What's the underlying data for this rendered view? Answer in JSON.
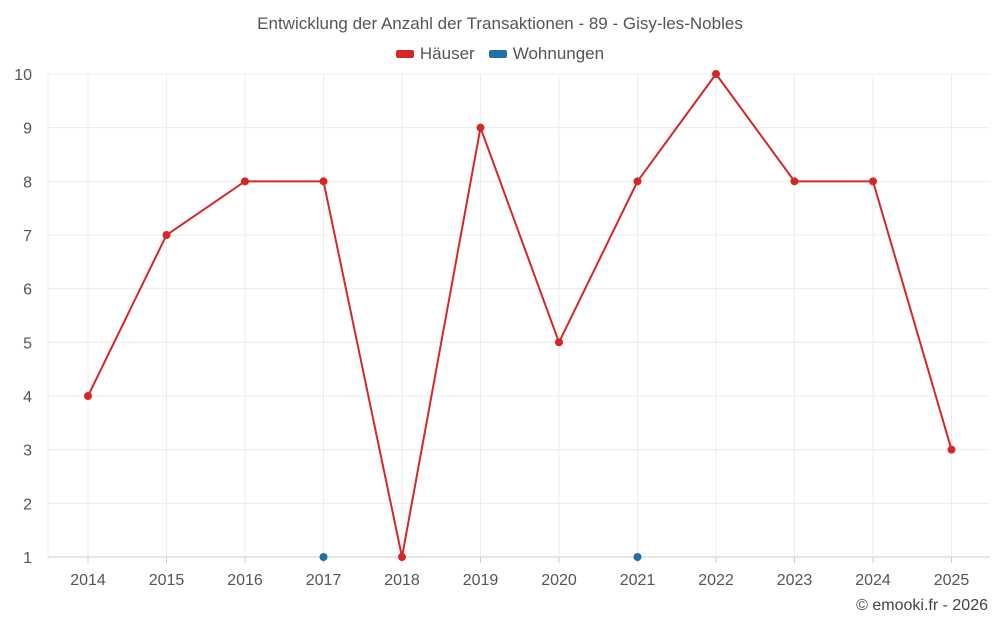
{
  "chart_data": {
    "type": "line",
    "title": "Entwicklung der Anzahl der Transaktionen - 89 - Gisy-les-Nobles",
    "categories": [
      "2014",
      "2015",
      "2016",
      "2017",
      "2018",
      "2019",
      "2020",
      "2021",
      "2022",
      "2023",
      "2024",
      "2025"
    ],
    "series": [
      {
        "name": "Häuser",
        "color": "#d62728",
        "values": [
          4,
          7,
          8,
          8,
          1,
          9,
          5,
          8,
          10,
          8,
          8,
          3
        ]
      },
      {
        "name": "Wohnungen",
        "color": "#1f6fa8",
        "values": [
          null,
          null,
          null,
          1,
          null,
          null,
          null,
          1,
          null,
          null,
          null,
          null
        ]
      }
    ],
    "ylim": [
      1,
      10
    ],
    "yticks": [
      "1",
      "2",
      "3",
      "4",
      "5",
      "6",
      "7",
      "8",
      "9",
      "10"
    ],
    "grid": true,
    "legend_position": "top-center"
  },
  "credit": "© emooki.fr - 2026"
}
